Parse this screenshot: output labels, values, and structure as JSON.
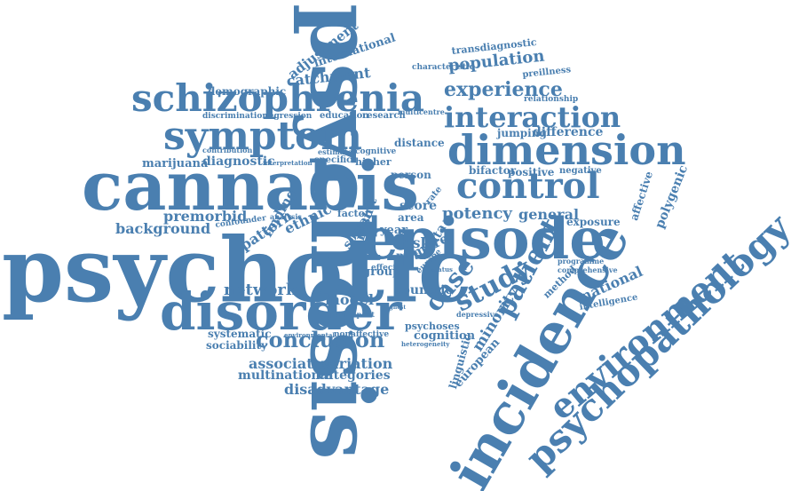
{
  "color": "#4a7fb0",
  "words": [
    "psychosis",
    "psychotic",
    "cannabis",
    "episode",
    "incidence",
    "disorder",
    "psychopathology",
    "environment",
    "schizophrenia",
    "symptom",
    "dimension",
    "control",
    "interaction",
    "experience",
    "patient",
    "study",
    "case",
    "conclusion",
    "network",
    "population",
    "catchment",
    "adjustment",
    "international",
    "demographic",
    "transdiagnostic",
    "characteristic",
    "preillness",
    "relationship",
    "discrimination",
    "regression",
    "education",
    "research",
    "multicentre",
    "jumping",
    "difference",
    "diagnostic",
    "marijuana",
    "contribution",
    "interpretation",
    "estimate",
    "specific",
    "cognitive",
    "higher",
    "distance",
    "person",
    "bifactor",
    "positive",
    "negative",
    "affective",
    "polygenic",
    "premorbid",
    "background",
    "confounder",
    "pattern",
    "finding",
    "analysis",
    "ethnic",
    "factor",
    "social",
    "result",
    "score",
    "area",
    "rate",
    "year",
    "risk",
    "meta",
    "more",
    "data",
    "potency",
    "general",
    "exposure",
    "programme",
    "comprehensive",
    "national",
    "intelligence",
    "method",
    "europe",
    "group",
    "effect",
    "model",
    "countrie",
    "minority",
    "european",
    "linguistic",
    "depressive",
    "psychoses",
    "cognition",
    "heterogeneity",
    "systematic",
    "environmental",
    "nonaffective",
    "sociability",
    "associated",
    "variation",
    "multinational",
    "categories",
    "disadvantage",
    "participant",
    "status",
    "highest"
  ]
}
